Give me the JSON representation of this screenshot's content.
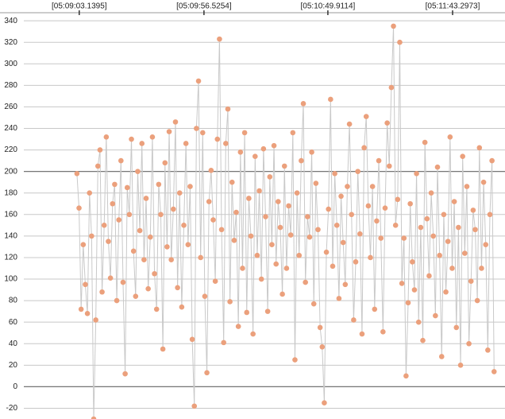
{
  "chart_data": {
    "type": "line",
    "series": [
      {
        "name": null,
        "color": "#eba07c",
        "line_color": "#c9c9c9",
        "values": [
          198,
          166,
          72,
          132,
          95,
          68,
          180,
          140,
          -30,
          62,
          205,
          220,
          88,
          150,
          232,
          135,
          101,
          170,
          188,
          80,
          155,
          210,
          97,
          12,
          185,
          160,
          230,
          126,
          84,
          200,
          145,
          226,
          118,
          175,
          91,
          139,
          232,
          105,
          72,
          188,
          160,
          35,
          208,
          130,
          237,
          118,
          165,
          246,
          92,
          180,
          74,
          150,
          226,
          132,
          186,
          44,
          -18,
          240,
          284,
          120,
          236,
          84,
          13,
          172,
          201,
          155,
          98,
          230,
          323,
          146,
          41,
          226,
          258,
          79,
          190,
          136,
          162,
          56,
          218,
          110,
          236,
          69,
          175,
          140,
          49,
          214,
          122,
          182,
          100,
          221,
          158,
          70,
          195,
          132,
          224,
          114,
          172,
          148,
          86,
          205,
          110,
          168,
          141,
          236,
          25,
          180,
          122,
          210,
          263,
          97,
          158,
          139,
          218,
          77,
          189,
          146,
          55,
          37,
          -15,
          125,
          165,
          267,
          112,
          198,
          150,
          82,
          177,
          134,
          95,
          186,
          244,
          160,
          62,
          116,
          200,
          142,
          49,
          222,
          251,
          168,
          120,
          186,
          72,
          154,
          210,
          138,
          51,
          166,
          245,
          205,
          278,
          335,
          150,
          174,
          320,
          96,
          138,
          10,
          78,
          170,
          116,
          90,
          198,
          60,
          148,
          43,
          227,
          156,
          103,
          180,
          140,
          66,
          204,
          122,
          28,
          160,
          88,
          135,
          232,
          110,
          172,
          55,
          148,
          20,
          214,
          124,
          186,
          40,
          98,
          164,
          146,
          80,
          222,
          110,
          190,
          132,
          34,
          160,
          210,
          14
        ]
      }
    ],
    "xlim": [
      -36.7,
      204.2
    ],
    "xticks": [
      {
        "value": 1.1,
        "label": "[05:09:03.1395]"
      },
      {
        "value": 60.6,
        "label": "[05:09:56.5254]"
      },
      {
        "value": 119.7,
        "label": "[05:10:49.9114]"
      },
      {
        "value": 179.2,
        "label": "[05:11:43.2973]"
      }
    ],
    "ylim": [
      -30,
      346
    ],
    "yticks": [
      -20,
      0,
      20,
      40,
      60,
      80,
      100,
      120,
      140,
      160,
      180,
      200,
      220,
      240,
      260,
      280,
      300,
      320,
      340
    ],
    "ref_lines": [
      0,
      200
    ],
    "grid": true
  }
}
